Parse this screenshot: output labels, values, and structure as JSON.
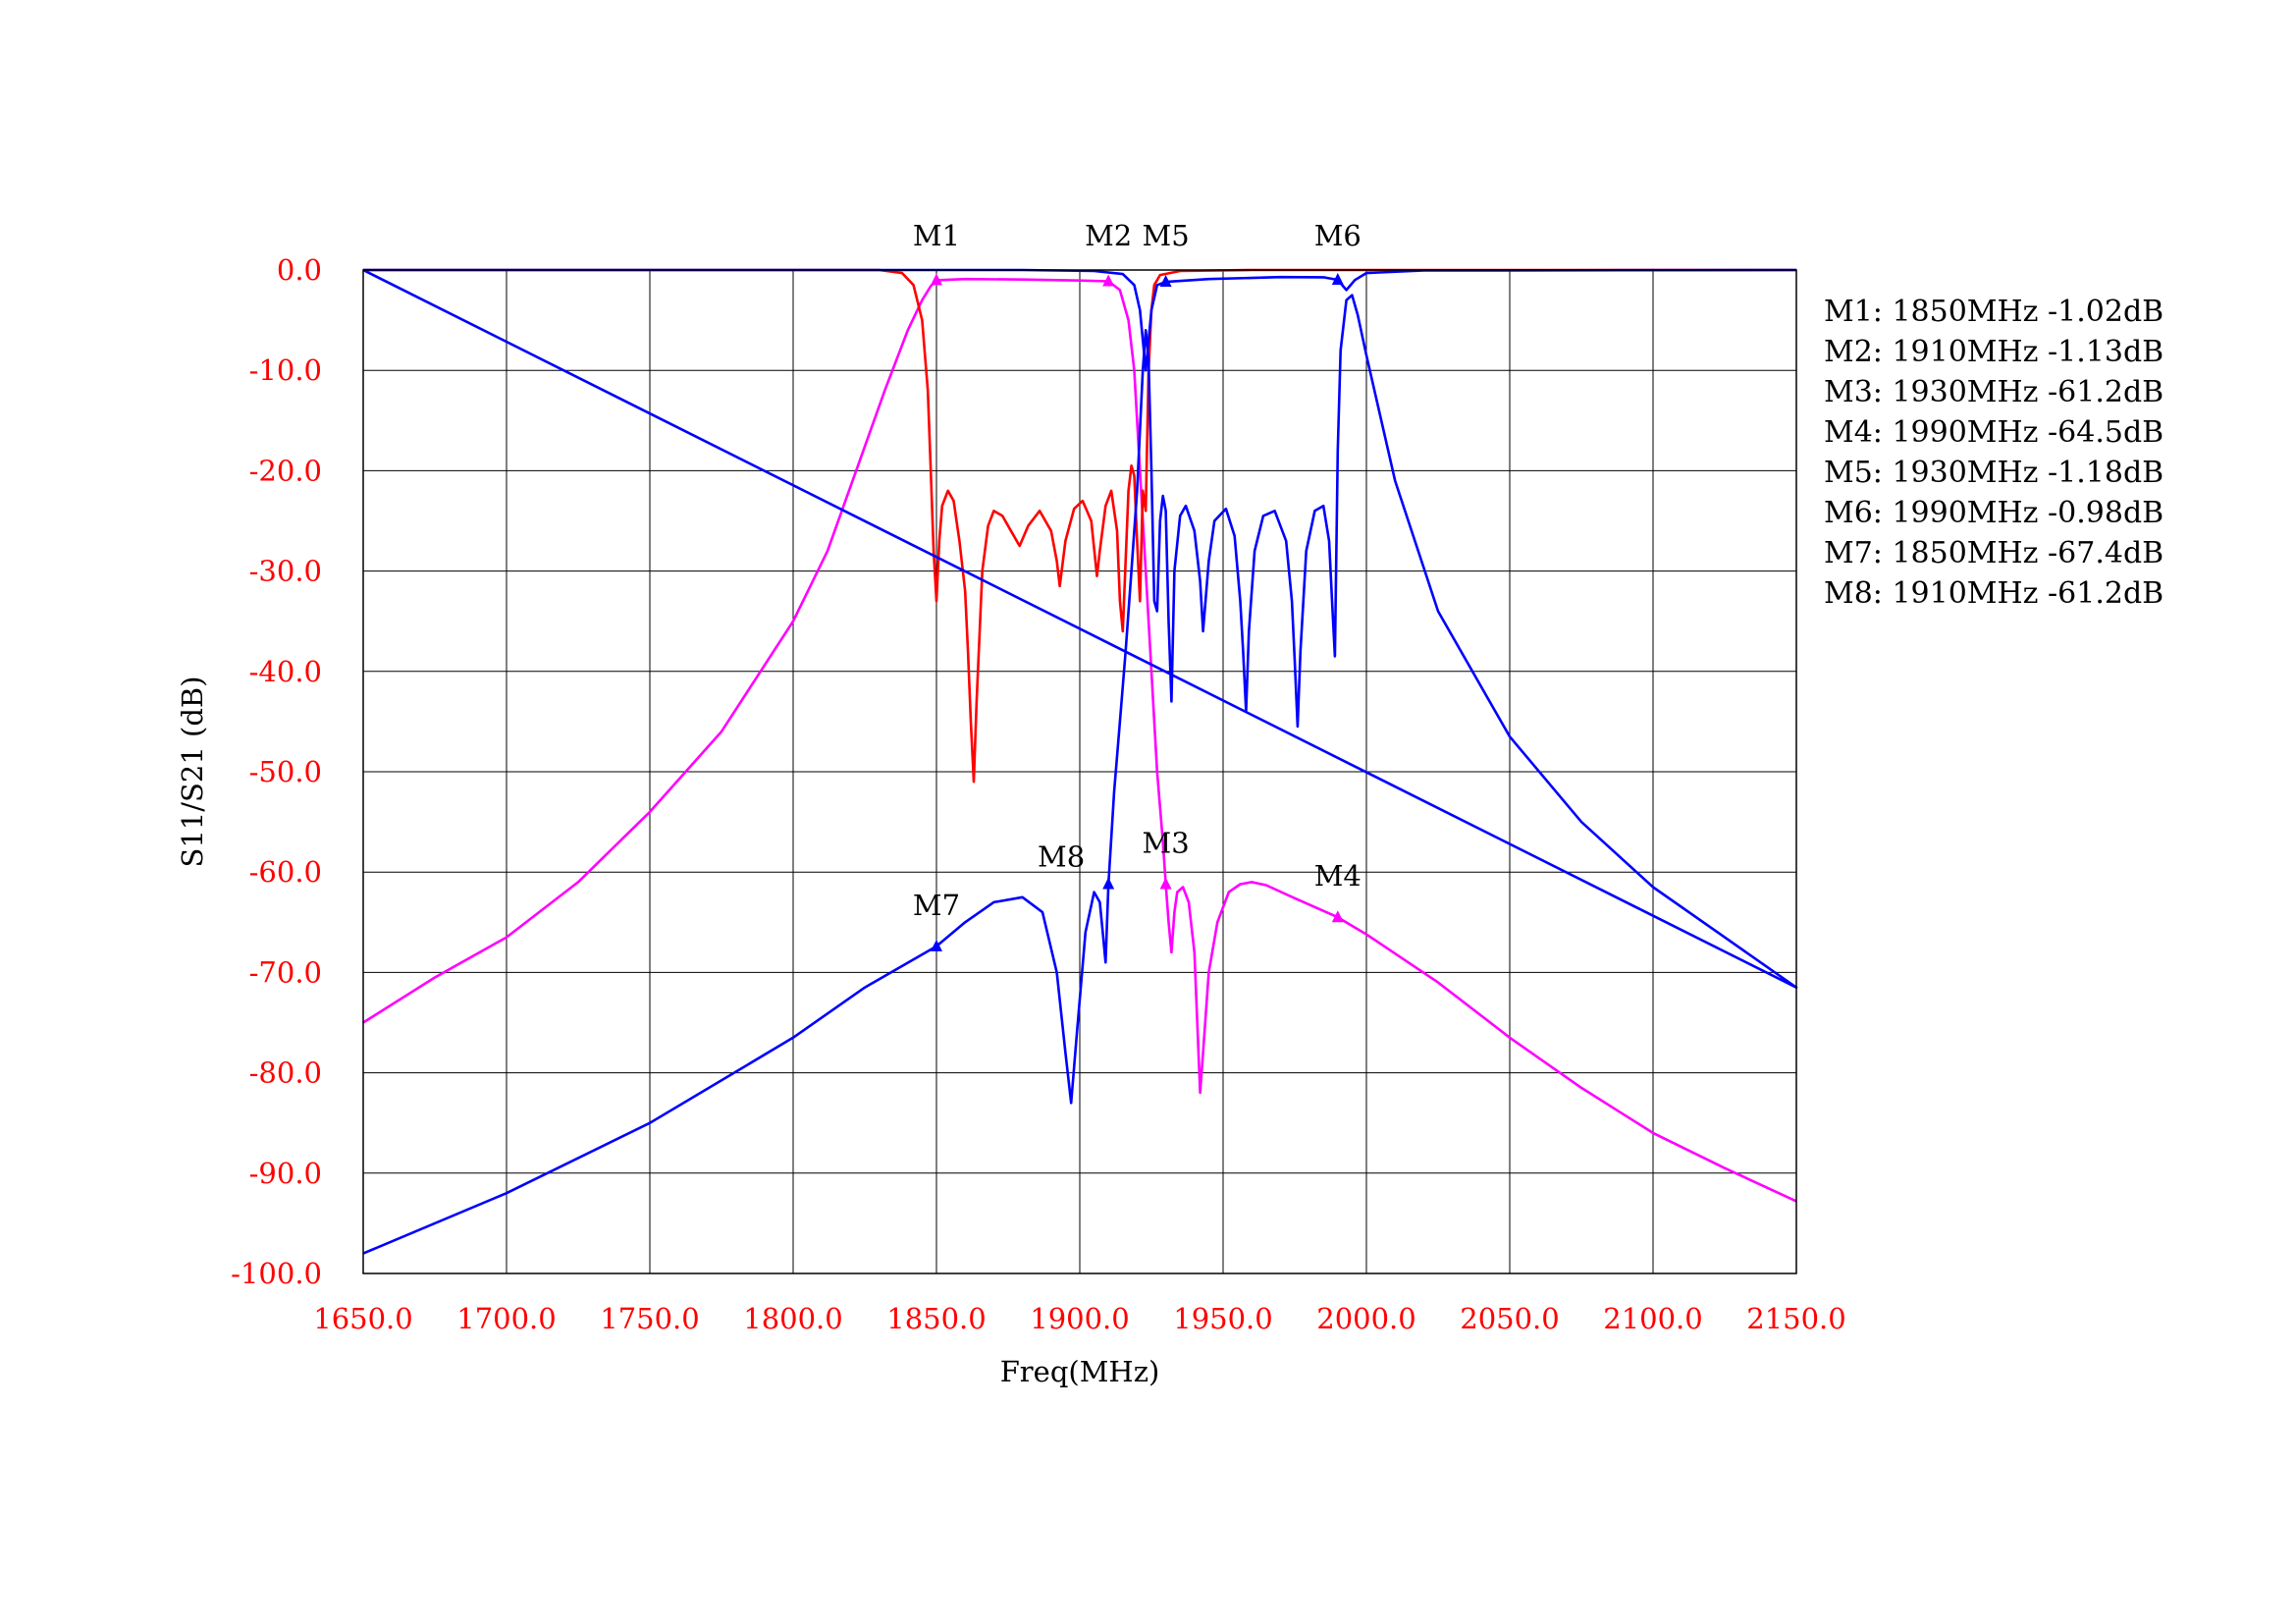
{
  "chart_data": {
    "type": "line",
    "xlabel": "Freq(MHz)",
    "ylabel": "S11/S21 (dB)",
    "xlim": [
      1650,
      2150
    ],
    "ylim": [
      -100,
      0
    ],
    "grid": true,
    "x_ticks": [
      1650,
      1700,
      1750,
      1800,
      1850,
      1900,
      1950,
      2000,
      2050,
      2100,
      2150
    ],
    "x_tick_labels": [
      "1650.0",
      "1700.0",
      "1750.0",
      "1800.0",
      "1850.0",
      "1900.0",
      "1950.0",
      "2000.0",
      "2050.0",
      "2100.0",
      "2150.0"
    ],
    "y_ticks": [
      0,
      -10,
      -20,
      -30,
      -40,
      -50,
      -60,
      -70,
      -80,
      -90,
      -100
    ],
    "y_tick_labels": [
      "0.0",
      "-10.0",
      "-20.0",
      "-30.0",
      "-40.0",
      "-50.0",
      "-60.0",
      "-70.0",
      "-80.0",
      "-90.0",
      "-100.0"
    ],
    "series": [
      {
        "color": "#ff00ff",
        "points": [
          [
            1650,
            -75.0
          ],
          [
            1675,
            -70.5
          ],
          [
            1700,
            -66.5
          ],
          [
            1725,
            -61.0
          ],
          [
            1750,
            -54.0
          ],
          [
            1775,
            -46.0
          ],
          [
            1800,
            -35.0
          ],
          [
            1812,
            -28.0
          ],
          [
            1822,
            -20.0
          ],
          [
            1832,
            -12.0
          ],
          [
            1840,
            -6.0
          ],
          [
            1845,
            -3.0
          ],
          [
            1848,
            -1.6
          ],
          [
            1850,
            -1.02
          ],
          [
            1860,
            -0.9
          ],
          [
            1880,
            -0.95
          ],
          [
            1900,
            -1.05
          ],
          [
            1910,
            -1.13
          ],
          [
            1914,
            -2.0
          ],
          [
            1917,
            -5.0
          ],
          [
            1919,
            -10.0
          ],
          [
            1921,
            -20.0
          ],
          [
            1923,
            -30.0
          ],
          [
            1925,
            -40.0
          ],
          [
            1927,
            -50.0
          ],
          [
            1929,
            -57.0
          ],
          [
            1930,
            -61.2
          ],
          [
            1931,
            -65.0
          ],
          [
            1932,
            -68.0
          ],
          [
            1933,
            -64.0
          ],
          [
            1934,
            -62.0
          ],
          [
            1936,
            -61.5
          ],
          [
            1938,
            -63.0
          ],
          [
            1940,
            -68.0
          ],
          [
            1941,
            -75.0
          ],
          [
            1942,
            -82.0
          ],
          [
            1943,
            -78.0
          ],
          [
            1945,
            -70.0
          ],
          [
            1948,
            -65.0
          ],
          [
            1952,
            -62.0
          ],
          [
            1956,
            -61.2
          ],
          [
            1960,
            -61.0
          ],
          [
            1965,
            -61.3
          ],
          [
            1975,
            -62.6
          ],
          [
            1990,
            -64.5
          ],
          [
            2000,
            -66.2
          ],
          [
            2025,
            -71.0
          ],
          [
            2050,
            -76.5
          ],
          [
            2075,
            -81.5
          ],
          [
            2100,
            -86.0
          ],
          [
            2125,
            -89.5
          ],
          [
            2150,
            -92.8
          ]
        ]
      },
      {
        "color": "#ff0000",
        "points": [
          [
            1650,
            0.0
          ],
          [
            1830,
            0.0
          ],
          [
            1838,
            -0.3
          ],
          [
            1842,
            -1.5
          ],
          [
            1845,
            -5.0
          ],
          [
            1847,
            -12.0
          ],
          [
            1848,
            -20.0
          ],
          [
            1849,
            -28.0
          ],
          [
            1850,
            -33.0
          ],
          [
            1851,
            -27.0
          ],
          [
            1852,
            -23.5
          ],
          [
            1854,
            -22.0
          ],
          [
            1856,
            -23.0
          ],
          [
            1858,
            -27.0
          ],
          [
            1860,
            -32.0
          ],
          [
            1861,
            -38.0
          ],
          [
            1862,
            -45.0
          ],
          [
            1863,
            -51.0
          ],
          [
            1864,
            -43.0
          ],
          [
            1866,
            -30.0
          ],
          [
            1868,
            -25.5
          ],
          [
            1870,
            -24.0
          ],
          [
            1873,
            -24.5
          ],
          [
            1876,
            -26.0
          ],
          [
            1879,
            -27.5
          ],
          [
            1882,
            -25.5
          ],
          [
            1886,
            -24.0
          ],
          [
            1890,
            -26.0
          ],
          [
            1892,
            -29.0
          ],
          [
            1893,
            -31.5
          ],
          [
            1895,
            -27.0
          ],
          [
            1898,
            -23.8
          ],
          [
            1901,
            -23.0
          ],
          [
            1904,
            -25.0
          ],
          [
            1906,
            -30.5
          ],
          [
            1907,
            -28.0
          ],
          [
            1909,
            -23.5
          ],
          [
            1911,
            -22.0
          ],
          [
            1913,
            -26.0
          ],
          [
            1914,
            -33.0
          ],
          [
            1915,
            -36.0
          ],
          [
            1916,
            -29.0
          ],
          [
            1917,
            -22.0
          ],
          [
            1918,
            -19.5
          ],
          [
            1919,
            -20.5
          ],
          [
            1920,
            -27.0
          ],
          [
            1921,
            -33.0
          ],
          [
            1922,
            -22.0
          ],
          [
            1923,
            -24.0
          ],
          [
            1924,
            -10.0
          ],
          [
            1925,
            -4.0
          ],
          [
            1926,
            -1.5
          ],
          [
            1928,
            -0.5
          ],
          [
            1935,
            -0.1
          ],
          [
            1960,
            0.0
          ],
          [
            2150,
            0.0
          ]
        ]
      },
      {
        "color": "#0000ff",
        "points": [
          [
            1650,
            -98.0
          ],
          [
            1700,
            -92.0
          ],
          [
            1750,
            -85.0
          ],
          [
            1800,
            -76.5
          ],
          [
            1825,
            -71.5
          ],
          [
            1850,
            -67.4
          ],
          [
            1860,
            -65.0
          ],
          [
            1870,
            -63.0
          ],
          [
            1880,
            -62.5
          ],
          [
            1887,
            -64.0
          ],
          [
            1892,
            -70.0
          ],
          [
            1895,
            -78.0
          ],
          [
            1897,
            -83.0
          ],
          [
            1899,
            -76.0
          ],
          [
            1902,
            -66.0
          ],
          [
            1905,
            -62.0
          ],
          [
            1907,
            -63.0
          ],
          [
            1908,
            -66.0
          ],
          [
            1909,
            -69.0
          ],
          [
            1910,
            -61.2
          ],
          [
            1912,
            -52.0
          ],
          [
            1914,
            -45.0
          ],
          [
            1916,
            -38.0
          ],
          [
            1918,
            -30.0
          ],
          [
            1920,
            -22.0
          ],
          [
            1921,
            -16.0
          ],
          [
            1922,
            -10.0
          ],
          [
            1923,
            -6.0
          ],
          [
            1924,
            -9.0
          ],
          [
            1925,
            -20.0
          ],
          [
            1926,
            -33.0
          ],
          [
            1927,
            -34.0
          ],
          [
            1928,
            -25.0
          ],
          [
            1929,
            -22.5
          ],
          [
            1930,
            -24.0
          ],
          [
            1931,
            -35.0
          ],
          [
            1932,
            -43.0
          ],
          [
            1933,
            -30.0
          ],
          [
            1935,
            -24.5
          ],
          [
            1937,
            -23.5
          ],
          [
            1940,
            -26.0
          ],
          [
            1942,
            -31.0
          ],
          [
            1943,
            -36.0
          ],
          [
            1945,
            -29.0
          ],
          [
            1947,
            -25.0
          ],
          [
            1951,
            -23.8
          ],
          [
            1954,
            -26.5
          ],
          [
            1956,
            -33.0
          ],
          [
            1957,
            -38.0
          ],
          [
            1958,
            -44.0
          ],
          [
            1959,
            -36.0
          ],
          [
            1961,
            -28.0
          ],
          [
            1964,
            -24.5
          ],
          [
            1968,
            -24.0
          ],
          [
            1972,
            -27.0
          ],
          [
            1974,
            -33.0
          ],
          [
            1975,
            -39.0
          ],
          [
            1976,
            -45.5
          ],
          [
            1977,
            -38.0
          ],
          [
            1979,
            -28.0
          ],
          [
            1982,
            -24.0
          ],
          [
            1985,
            -23.5
          ],
          [
            1987,
            -27.0
          ],
          [
            1988,
            -33.0
          ],
          [
            1989,
            -38.5
          ],
          [
            1990,
            -18.0
          ],
          [
            1991,
            -8.0
          ],
          [
            1993,
            -3.0
          ],
          [
            1995,
            -2.5
          ],
          [
            1997,
            -4.5
          ],
          [
            2000,
            -8.5
          ],
          [
            2010,
            -21.0
          ],
          [
            2025,
            -34.0
          ],
          [
            2050,
            -46.5
          ],
          [
            2075,
            -55.0
          ],
          [
            2100,
            -61.5
          ],
          [
            2125,
            -66.5
          ],
          [
            2150,
            -71.5
          ],
          [
            1650,
            0.0
          ],
          [
            1650,
            0.0
          ]
        ]
      },
      {
        "color": "#0000ff",
        "points": [
          [
            1650,
            0.0
          ],
          [
            1880,
            0.0
          ],
          [
            1905,
            -0.1
          ],
          [
            1915,
            -0.4
          ],
          [
            1919,
            -1.5
          ],
          [
            1921,
            -4.0
          ],
          [
            1923,
            -10.0
          ],
          [
            1925,
            -4.0
          ],
          [
            1927,
            -1.5
          ],
          [
            1930,
            -1.18
          ],
          [
            1945,
            -0.9
          ],
          [
            1970,
            -0.7
          ],
          [
            1985,
            -0.72
          ],
          [
            1990,
            -0.98
          ],
          [
            1993,
            -2.0
          ],
          [
            1996,
            -1.0
          ],
          [
            2000,
            -0.3
          ],
          [
            2020,
            -0.05
          ],
          [
            2150,
            0.0
          ]
        ]
      }
    ],
    "markers": [
      {
        "label": "M1",
        "x": 1850,
        "y": -1.02,
        "color": "#ff00ff",
        "label_pos": "above"
      },
      {
        "label": "M2",
        "x": 1910,
        "y": -1.13,
        "color": "#ff00ff",
        "label_pos": "above"
      },
      {
        "label": "M3",
        "x": 1930,
        "y": -61.2,
        "color": "#ff00ff",
        "label_pos": "above"
      },
      {
        "label": "M4",
        "x": 1990,
        "y": -64.5,
        "color": "#ff00ff",
        "label_pos": "above"
      },
      {
        "label": "M5",
        "x": 1930,
        "y": -1.18,
        "color": "#0000ff",
        "label_pos": "above"
      },
      {
        "label": "M6",
        "x": 1990,
        "y": -0.98,
        "color": "#0000ff",
        "label_pos": "above"
      },
      {
        "label": "M7",
        "x": 1850,
        "y": -67.4,
        "color": "#0000ff",
        "label_pos": "above"
      },
      {
        "label": "M8",
        "x": 1910,
        "y": -61.2,
        "color": "#0000ff",
        "label_pos": "left"
      }
    ],
    "marker_readouts": [
      "M1: 1850MHz -1.02dB",
      "M2: 1910MHz -1.13dB",
      "M3: 1930MHz -61.2dB",
      "M4: 1990MHz -64.5dB",
      "M5: 1930MHz -1.18dB",
      "M6: 1990MHz -0.98dB",
      "M7: 1850MHz -67.4dB",
      "M8: 1910MHz -61.2dB"
    ]
  }
}
